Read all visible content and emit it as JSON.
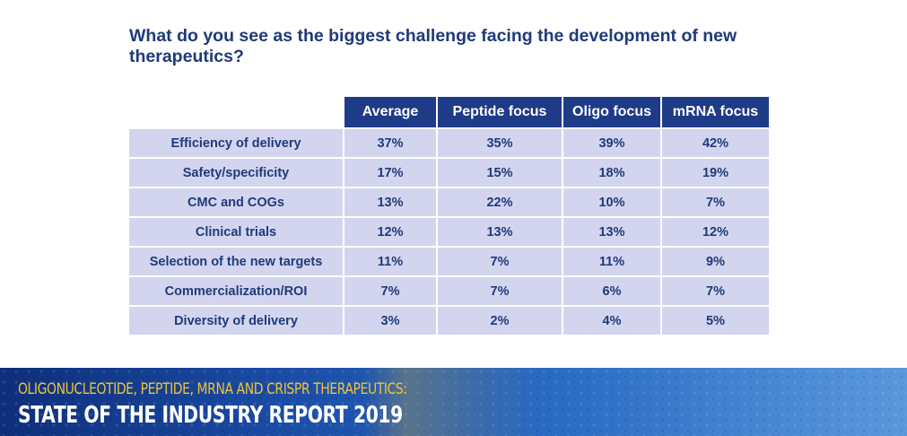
{
  "question": "What do you see as the biggest challenge facing the development of new therapeutics?",
  "table": {
    "headers": [
      "Average",
      "Peptide focus",
      "Oligo focus",
      "mRNA focus"
    ],
    "rows": [
      {
        "label": "Efficiency of delivery",
        "values": [
          "37%",
          "35%",
          "39%",
          "42%"
        ]
      },
      {
        "label": "Safety/specificity",
        "values": [
          "17%",
          "15%",
          "18%",
          "19%"
        ]
      },
      {
        "label": "CMC and COGs",
        "values": [
          "13%",
          "22%",
          "10%",
          "7%"
        ]
      },
      {
        "label": "Clinical trials",
        "values": [
          "12%",
          "13%",
          "13%",
          "12%"
        ]
      },
      {
        "label": "Selection of the new targets",
        "values": [
          "11%",
          "7%",
          "11%",
          "9%"
        ]
      },
      {
        "label": "Commercialization/ROI",
        "values": [
          "7%",
          "7%",
          "6%",
          "7%"
        ]
      },
      {
        "label": "Diversity of delivery",
        "values": [
          "3%",
          "2%",
          "4%",
          "5%"
        ]
      }
    ]
  },
  "footer": {
    "line1": "OLIGONUCLEOTIDE, PEPTIDE, MRNA AND CRISPR THERAPEUTICS:",
    "line2": "STATE OF THE INDUSTRY REPORT 2019"
  },
  "colors": {
    "title_text": "#1f3a7a",
    "header_bg": "#1e3b88",
    "cell_bg": "#d3d5ef",
    "footer_yellow": "#f0c437"
  }
}
